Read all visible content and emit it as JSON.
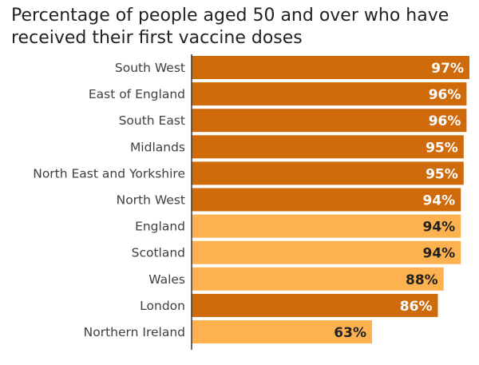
{
  "chart_data": {
    "type": "bar",
    "orientation": "horizontal",
    "title": "Percentage of people aged 50 and over who have received their first vaccine doses",
    "categories": [
      "South West",
      "East of England",
      "South East",
      "Midlands",
      "North East and Yorkshire",
      "North West",
      "England",
      "Scotland",
      "Wales",
      "London",
      "Northern Ireland"
    ],
    "values": [
      97,
      96,
      96,
      95,
      95,
      94,
      94,
      94,
      88,
      86,
      63
    ],
    "value_labels": [
      "97%",
      "96%",
      "96%",
      "95%",
      "95%",
      "94%",
      "94%",
      "94%",
      "88%",
      "86%",
      "63%"
    ],
    "bar_colors": [
      "#d06b0b",
      "#d06b0b",
      "#d06b0b",
      "#d06b0b",
      "#d06b0b",
      "#d06b0b",
      "#fdb24f",
      "#fdb24f",
      "#fdb24f",
      "#d06b0b",
      "#fdb24f"
    ],
    "label_colors": [
      "#ffffff",
      "#ffffff",
      "#ffffff",
      "#ffffff",
      "#ffffff",
      "#ffffff",
      "#222222",
      "#222222",
      "#222222",
      "#ffffff",
      "#222222"
    ],
    "xlim": [
      0,
      97
    ],
    "grid": false,
    "legend": "none"
  }
}
